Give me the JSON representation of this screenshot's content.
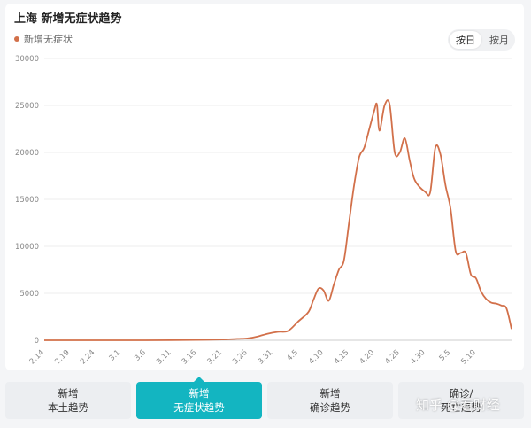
{
  "header": {
    "title": "上海 新增无症状趋势",
    "legend_label": "新增无症状",
    "toggle": [
      "按日",
      "按月"
    ],
    "toggle_active": 0
  },
  "colors": {
    "series": "#d2704a",
    "tab_active": "#13b5c1",
    "grid": "#eeeeee"
  },
  "chart_data": {
    "type": "line",
    "ylim": [
      0,
      30000
    ],
    "yticks": [
      0,
      5000,
      10000,
      15000,
      20000,
      25000,
      30000
    ],
    "x_tick_labels": [
      "2.14",
      "2.19",
      "2.24",
      "3.1",
      "3.6",
      "3.11",
      "3.16",
      "3.21",
      "3.26",
      "3.31",
      "4.5",
      "4.10",
      "4.15",
      "4.20",
      "4.25",
      "4.30",
      "5.5",
      "5.10"
    ],
    "grid": true,
    "series": [
      {
        "name": "新增无症状",
        "points": [
          [
            0,
            0
          ],
          [
            5,
            0
          ],
          [
            10,
            0
          ],
          [
            15,
            0
          ],
          [
            20,
            0
          ],
          [
            25,
            10
          ],
          [
            30,
            40
          ],
          [
            35,
            80
          ],
          [
            38,
            150
          ],
          [
            40,
            200
          ],
          [
            42,
            400
          ],
          [
            44,
            700
          ],
          [
            46,
            900
          ],
          [
            48,
            1000
          ],
          [
            50,
            2000
          ],
          [
            52,
            3000
          ],
          [
            53,
            4300
          ],
          [
            54,
            5500
          ],
          [
            55,
            5300
          ],
          [
            56,
            4200
          ],
          [
            57,
            5900
          ],
          [
            58,
            7500
          ],
          [
            59,
            8500
          ],
          [
            60,
            12500
          ],
          [
            61,
            16500
          ],
          [
            62,
            19500
          ],
          [
            63,
            20500
          ],
          [
            64,
            22500
          ],
          [
            65,
            24500
          ],
          [
            65.5,
            25100
          ],
          [
            66,
            22300
          ],
          [
            67,
            25000
          ],
          [
            68,
            25100
          ],
          [
            69,
            20000
          ],
          [
            70,
            20000
          ],
          [
            71,
            21500
          ],
          [
            72,
            19000
          ],
          [
            73,
            17000
          ],
          [
            75,
            15800
          ],
          [
            76,
            15800
          ],
          [
            77,
            20500
          ],
          [
            78,
            19800
          ],
          [
            79,
            16500
          ],
          [
            80,
            14000
          ],
          [
            81,
            9500
          ],
          [
            82,
            9300
          ],
          [
            83,
            9300
          ],
          [
            84,
            7000
          ],
          [
            85,
            6600
          ],
          [
            86,
            5200
          ],
          [
            87,
            4400
          ],
          [
            88,
            4000
          ],
          [
            89,
            3900
          ],
          [
            90,
            3700
          ],
          [
            91,
            3400
          ],
          [
            92,
            1200
          ]
        ]
      }
    ]
  },
  "tabs": [
    {
      "line1": "新增",
      "line2": "本土趋势"
    },
    {
      "line1": "新增",
      "line2": "无症状趋势"
    },
    {
      "line1": "新增",
      "line2": "确诊趋势"
    },
    {
      "line1": "确诊/",
      "line2": "死亡趋势"
    }
  ],
  "active_tab": 1,
  "watermark": "知乎 @看财经"
}
